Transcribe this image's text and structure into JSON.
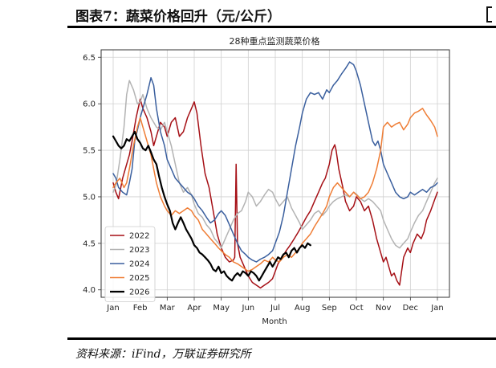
{
  "header": {
    "title": "图表7：蔬菜价格回升（元/公斤）"
  },
  "footer": {
    "source": "资料来源：iFind，万联证券研究所"
  },
  "chart_data": {
    "type": "line",
    "title": "28种重点监测蔬菜价格",
    "xlabel": "Month",
    "ylabel": "",
    "x_ticks": [
      "Jan",
      "Feb",
      "Mar",
      "Apr",
      "May",
      "Jun",
      "Jul",
      "Aug",
      "Sep",
      "Oct",
      "Nov",
      "Dec",
      "Jan"
    ],
    "y_ticks": [
      "4.0",
      "4.5",
      "5.0",
      "5.5",
      "6.0",
      "6.5"
    ],
    "xlim": [
      0,
      12
    ],
    "ylim": [
      3.92,
      6.58
    ],
    "grid": true,
    "legend_position": "lower-left",
    "series": [
      {
        "name": "2022",
        "color": "#a50f15",
        "x": [
          0.0,
          0.1,
          0.2,
          0.35,
          0.5,
          0.6,
          0.7,
          0.85,
          1.0,
          1.1,
          1.25,
          1.4,
          1.5,
          1.6,
          1.75,
          1.9,
          2.0,
          2.15,
          2.3,
          2.45,
          2.6,
          2.75,
          2.9,
          3.0,
          3.1,
          3.25,
          3.4,
          3.55,
          3.7,
          3.85,
          4.0,
          4.15,
          4.3,
          4.45,
          4.5,
          4.55,
          4.6,
          4.7,
          4.85,
          5.0,
          5.15,
          5.3,
          5.45,
          5.6,
          5.75,
          5.9,
          6.0,
          6.1,
          6.25,
          6.4,
          6.55,
          6.7,
          6.85,
          7.0,
          7.15,
          7.3,
          7.45,
          7.6,
          7.75,
          7.85,
          8.0,
          8.1,
          8.2,
          8.25,
          8.35,
          8.5,
          8.6,
          8.75,
          8.9,
          9.0,
          9.15,
          9.3,
          9.45,
          9.6,
          9.75,
          9.9,
          10.0,
          10.1,
          10.2,
          10.3,
          10.4,
          10.5,
          10.6,
          10.75,
          10.9,
          11.0,
          11.1,
          11.25,
          11.4,
          11.5,
          11.6,
          11.75,
          11.9,
          12.0
        ],
        "y": [
          5.15,
          5.05,
          4.98,
          5.2,
          5.35,
          5.45,
          5.6,
          5.85,
          6.05,
          5.95,
          5.85,
          5.7,
          5.55,
          5.65,
          5.8,
          5.75,
          5.65,
          5.8,
          5.85,
          5.65,
          5.7,
          5.85,
          5.95,
          6.02,
          5.9,
          5.55,
          5.25,
          5.1,
          4.85,
          4.6,
          4.45,
          4.35,
          4.3,
          4.32,
          4.35,
          5.35,
          4.5,
          4.35,
          4.25,
          4.15,
          4.08,
          4.05,
          4.02,
          4.05,
          4.08,
          4.12,
          4.2,
          4.28,
          4.35,
          4.42,
          4.48,
          4.55,
          4.62,
          4.7,
          4.78,
          4.85,
          4.95,
          5.05,
          5.15,
          5.2,
          5.35,
          5.5,
          5.56,
          5.5,
          5.3,
          5.1,
          4.95,
          4.85,
          4.9,
          5.0,
          4.95,
          4.85,
          4.9,
          4.75,
          4.55,
          4.4,
          4.3,
          4.35,
          4.25,
          4.15,
          4.18,
          4.1,
          4.05,
          4.35,
          4.45,
          4.4,
          4.5,
          4.6,
          4.55,
          4.62,
          4.75,
          4.85,
          4.97,
          5.05
        ]
      },
      {
        "name": "2023",
        "color": "#b3b3b3",
        "x": [
          0.0,
          0.1,
          0.25,
          0.4,
          0.5,
          0.6,
          0.75,
          0.9,
          1.0,
          1.1,
          1.25,
          1.4,
          1.5,
          1.6,
          1.75,
          1.9,
          2.0,
          2.15,
          2.3,
          2.45,
          2.6,
          2.75,
          2.9,
          3.0,
          3.15,
          3.3,
          3.45,
          3.6,
          3.75,
          3.9,
          4.0,
          4.15,
          4.3,
          4.45,
          4.6,
          4.75,
          4.9,
          5.0,
          5.15,
          5.3,
          5.45,
          5.6,
          5.75,
          5.9,
          6.0,
          6.15,
          6.3,
          6.45,
          6.6,
          6.75,
          6.9,
          7.0,
          7.15,
          7.3,
          7.45,
          7.6,
          7.75,
          7.9,
          8.0,
          8.15,
          8.3,
          8.45,
          8.6,
          8.75,
          8.9,
          9.0,
          9.15,
          9.3,
          9.45,
          9.6,
          9.75,
          9.9,
          10.0,
          10.15,
          10.3,
          10.45,
          10.6,
          10.75,
          10.9,
          11.0,
          11.15,
          11.3,
          11.45,
          11.6,
          11.75,
          11.9,
          12.0
        ],
        "y": [
          5.05,
          5.12,
          5.4,
          5.75,
          6.1,
          6.25,
          6.15,
          6.0,
          6.02,
          6.1,
          5.95,
          5.85,
          5.8,
          5.75,
          5.72,
          5.8,
          5.7,
          5.55,
          5.35,
          5.15,
          5.05,
          5.1,
          5.02,
          4.92,
          4.82,
          4.78,
          4.7,
          4.65,
          4.55,
          4.5,
          4.45,
          4.55,
          4.65,
          4.75,
          4.82,
          4.85,
          4.95,
          5.05,
          5.0,
          4.9,
          4.95,
          5.02,
          5.08,
          5.05,
          4.98,
          4.9,
          4.95,
          5.0,
          4.88,
          4.8,
          4.72,
          4.65,
          4.7,
          4.75,
          4.82,
          4.85,
          4.8,
          4.85,
          4.9,
          4.95,
          4.98,
          5.0,
          5.02,
          5.0,
          5.05,
          5.03,
          4.98,
          4.95,
          4.98,
          4.95,
          4.9,
          4.85,
          4.75,
          4.65,
          4.55,
          4.48,
          4.45,
          4.5,
          4.55,
          4.62,
          4.72,
          4.8,
          4.85,
          4.95,
          5.05,
          5.15,
          5.2
        ]
      },
      {
        "name": "2024",
        "color": "#3a5f9e",
        "x": [
          0.0,
          0.1,
          0.2,
          0.35,
          0.5,
          0.6,
          0.7,
          0.8,
          0.9,
          1.0,
          1.1,
          1.25,
          1.4,
          1.5,
          1.6,
          1.75,
          1.9,
          2.0,
          2.15,
          2.3,
          2.45,
          2.6,
          2.75,
          2.9,
          3.0,
          3.15,
          3.3,
          3.45,
          3.6,
          3.75,
          3.9,
          4.0,
          4.15,
          4.3,
          4.45,
          4.6,
          4.75,
          4.9,
          5.0,
          5.15,
          5.3,
          5.45,
          5.6,
          5.75,
          5.9,
          6.0,
          6.15,
          6.3,
          6.45,
          6.6,
          6.75,
          6.9,
          7.0,
          7.15,
          7.3,
          7.45,
          7.6,
          7.75,
          7.9,
          8.0,
          8.15,
          8.3,
          8.45,
          8.6,
          8.75,
          8.9,
          9.0,
          9.15,
          9.3,
          9.45,
          9.6,
          9.7,
          9.8,
          9.9,
          10.0,
          10.15,
          10.3,
          10.45,
          10.6,
          10.75,
          10.9,
          11.0,
          11.15,
          11.3,
          11.45,
          11.6,
          11.75,
          11.9,
          12.0
        ],
        "y": [
          5.25,
          5.2,
          5.1,
          5.05,
          5.02,
          5.15,
          5.3,
          5.6,
          5.72,
          5.85,
          5.95,
          6.1,
          6.28,
          6.2,
          5.95,
          5.7,
          5.55,
          5.4,
          5.3,
          5.2,
          5.15,
          5.1,
          5.05,
          5.02,
          4.98,
          4.9,
          4.85,
          4.78,
          4.72,
          4.75,
          4.82,
          4.85,
          4.8,
          4.7,
          4.6,
          4.5,
          4.42,
          4.38,
          4.35,
          4.32,
          4.3,
          4.33,
          4.35,
          4.38,
          4.42,
          4.5,
          4.62,
          4.8,
          5.05,
          5.3,
          5.55,
          5.75,
          5.9,
          6.05,
          6.12,
          6.1,
          6.12,
          6.05,
          6.15,
          6.12,
          6.2,
          6.25,
          6.32,
          6.38,
          6.45,
          6.42,
          6.35,
          6.2,
          6.0,
          5.8,
          5.6,
          5.55,
          5.6,
          5.5,
          5.35,
          5.25,
          5.15,
          5.05,
          5.0,
          4.98,
          5.0,
          5.05,
          5.02,
          5.05,
          5.08,
          5.05,
          5.1,
          5.12,
          5.15
        ]
      },
      {
        "name": "2025",
        "color": "#ef7d35",
        "x": [
          0.0,
          0.1,
          0.25,
          0.4,
          0.5,
          0.6,
          0.75,
          0.9,
          1.0,
          1.1,
          1.25,
          1.4,
          1.5,
          1.6,
          1.75,
          1.9,
          2.0,
          2.15,
          2.3,
          2.45,
          2.6,
          2.75,
          2.9,
          3.0,
          3.15,
          3.3,
          3.45,
          3.6,
          3.75,
          3.9,
          4.0,
          4.15,
          4.3,
          4.45,
          4.6,
          4.75,
          4.9,
          5.0,
          5.15,
          5.3,
          5.45,
          5.6,
          5.75,
          5.9,
          6.0,
          6.15,
          6.3,
          6.45,
          6.6,
          6.75,
          6.9,
          7.0,
          7.15,
          7.3,
          7.45,
          7.6,
          7.75,
          7.9,
          8.0,
          8.15,
          8.3,
          8.45,
          8.6,
          8.75,
          8.9,
          9.0,
          9.15,
          9.3,
          9.45,
          9.6,
          9.75,
          9.9,
          10.0,
          10.15,
          10.3,
          10.45,
          10.6,
          10.75,
          10.9,
          11.0,
          11.15,
          11.3,
          11.45,
          11.6,
          11.75,
          11.9,
          12.0
        ],
        "y": [
          5.1,
          5.15,
          5.2,
          5.1,
          5.15,
          5.3,
          5.55,
          5.75,
          5.85,
          5.75,
          5.6,
          5.45,
          5.3,
          5.15,
          5.0,
          4.9,
          4.85,
          4.8,
          4.85,
          4.82,
          4.85,
          4.88,
          4.85,
          4.8,
          4.75,
          4.65,
          4.6,
          4.55,
          4.5,
          4.45,
          4.42,
          4.38,
          4.35,
          4.3,
          4.28,
          4.25,
          4.22,
          4.2,
          4.22,
          4.25,
          4.28,
          4.32,
          4.3,
          4.35,
          4.32,
          4.3,
          4.35,
          4.38,
          4.35,
          4.4,
          4.45,
          4.5,
          4.55,
          4.6,
          4.68,
          4.75,
          4.82,
          4.9,
          5.0,
          5.1,
          5.15,
          5.1,
          5.05,
          5.0,
          5.05,
          5.02,
          4.98,
          5.0,
          5.05,
          5.15,
          5.3,
          5.5,
          5.75,
          5.8,
          5.75,
          5.78,
          5.8,
          5.72,
          5.78,
          5.85,
          5.9,
          5.92,
          5.95,
          5.88,
          5.82,
          5.75,
          5.65
        ]
      },
      {
        "name": "2026",
        "color": "#000000",
        "x": [
          0.0,
          0.1,
          0.2,
          0.3,
          0.4,
          0.5,
          0.6,
          0.7,
          0.8,
          0.9,
          1.0,
          1.1,
          1.2,
          1.3,
          1.4,
          1.5,
          1.6,
          1.7,
          1.8,
          1.9,
          2.0,
          2.1,
          2.2,
          2.3,
          2.4,
          2.5,
          2.6,
          2.7,
          2.8,
          2.9,
          3.0,
          3.1,
          3.2,
          3.3,
          3.4,
          3.5,
          3.6,
          3.7,
          3.8,
          3.9,
          4.0,
          4.1,
          4.2,
          4.3,
          4.4,
          4.5,
          4.6,
          4.7,
          4.8,
          4.9,
          5.0,
          5.1,
          5.2,
          5.3,
          5.4,
          5.5,
          5.6,
          5.7,
          5.8,
          5.9,
          6.0,
          6.1,
          6.2,
          6.3,
          6.4,
          6.5,
          6.6,
          6.7,
          6.8,
          6.9,
          7.0,
          7.1,
          7.2,
          7.3
        ],
        "y": [
          5.65,
          5.6,
          5.55,
          5.52,
          5.55,
          5.62,
          5.6,
          5.65,
          5.7,
          5.62,
          5.58,
          5.52,
          5.5,
          5.55,
          5.48,
          5.4,
          5.35,
          5.22,
          5.1,
          5.0,
          4.92,
          4.85,
          4.72,
          4.65,
          4.72,
          4.78,
          4.72,
          4.65,
          4.6,
          4.55,
          4.48,
          4.45,
          4.4,
          4.38,
          4.35,
          4.32,
          4.28,
          4.22,
          4.2,
          4.25,
          4.18,
          4.2,
          4.15,
          4.12,
          4.1,
          4.15,
          4.18,
          4.15,
          4.2,
          4.18,
          4.15,
          4.2,
          4.18,
          4.15,
          4.1,
          4.15,
          4.2,
          4.25,
          4.3,
          4.25,
          4.3,
          4.35,
          4.33,
          4.38,
          4.4,
          4.35,
          4.42,
          4.45,
          4.4,
          4.45,
          4.48,
          4.45,
          4.5,
          4.48
        ]
      }
    ]
  }
}
